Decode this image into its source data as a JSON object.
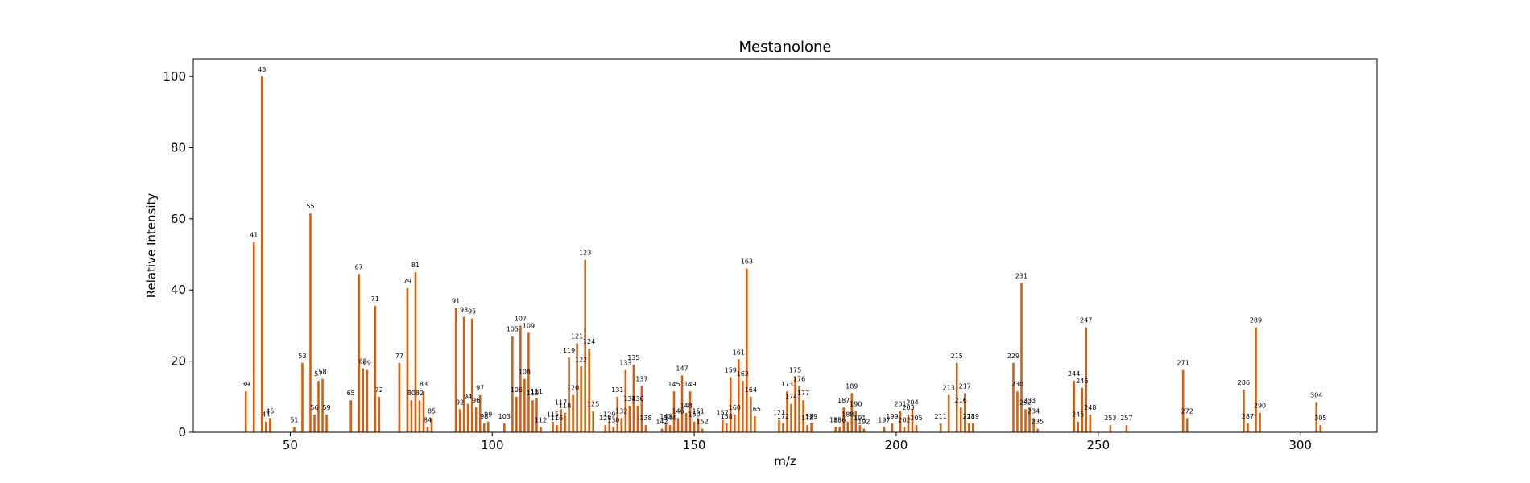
{
  "chart_data": {
    "type": "bar",
    "title": "Mestanolone",
    "xlabel": "m/z",
    "ylabel": "Relative Intensity",
    "xlim": [
      26,
      319
    ],
    "ylim": [
      0,
      105
    ],
    "xticks": [
      50,
      100,
      150,
      200,
      250,
      300
    ],
    "yticks": [
      0,
      20,
      40,
      60,
      80,
      100
    ],
    "bar_color": "#d95f0e",
    "grid": false,
    "peaks": [
      {
        "mz": 39,
        "intensity": 11.5
      },
      {
        "mz": 41,
        "intensity": 53.5
      },
      {
        "mz": 43,
        "intensity": 100
      },
      {
        "mz": 44,
        "intensity": 3
      },
      {
        "mz": 45,
        "intensity": 4
      },
      {
        "mz": 51,
        "intensity": 1.5
      },
      {
        "mz": 53,
        "intensity": 19.5
      },
      {
        "mz": 55,
        "intensity": 61.5
      },
      {
        "mz": 56,
        "intensity": 5
      },
      {
        "mz": 57,
        "intensity": 14.5
      },
      {
        "mz": 58,
        "intensity": 15
      },
      {
        "mz": 59,
        "intensity": 5
      },
      {
        "mz": 65,
        "intensity": 9
      },
      {
        "mz": 67,
        "intensity": 44.5
      },
      {
        "mz": 68,
        "intensity": 18
      },
      {
        "mz": 69,
        "intensity": 17.5
      },
      {
        "mz": 71,
        "intensity": 35.5
      },
      {
        "mz": 72,
        "intensity": 10
      },
      {
        "mz": 77,
        "intensity": 19.5
      },
      {
        "mz": 79,
        "intensity": 40.5
      },
      {
        "mz": 80,
        "intensity": 9
      },
      {
        "mz": 81,
        "intensity": 45
      },
      {
        "mz": 82,
        "intensity": 9
      },
      {
        "mz": 83,
        "intensity": 11.5
      },
      {
        "mz": 84,
        "intensity": 1.5
      },
      {
        "mz": 85,
        "intensity": 4
      },
      {
        "mz": 91,
        "intensity": 35
      },
      {
        "mz": 92,
        "intensity": 6.5
      },
      {
        "mz": 93,
        "intensity": 32.5
      },
      {
        "mz": 94,
        "intensity": 8
      },
      {
        "mz": 95,
        "intensity": 32
      },
      {
        "mz": 96,
        "intensity": 7
      },
      {
        "mz": 97,
        "intensity": 10.5
      },
      {
        "mz": 98,
        "intensity": 2.5
      },
      {
        "mz": 99,
        "intensity": 3
      },
      {
        "mz": 103,
        "intensity": 2.5
      },
      {
        "mz": 105,
        "intensity": 27
      },
      {
        "mz": 106,
        "intensity": 10
      },
      {
        "mz": 107,
        "intensity": 30
      },
      {
        "mz": 108,
        "intensity": 15
      },
      {
        "mz": 109,
        "intensity": 28
      },
      {
        "mz": 110,
        "intensity": 9
      },
      {
        "mz": 111,
        "intensity": 9.5
      },
      {
        "mz": 112,
        "intensity": 1.5
      },
      {
        "mz": 115,
        "intensity": 3
      },
      {
        "mz": 116,
        "intensity": 2
      },
      {
        "mz": 117,
        "intensity": 6.5
      },
      {
        "mz": 118,
        "intensity": 5.5
      },
      {
        "mz": 119,
        "intensity": 21
      },
      {
        "mz": 120,
        "intensity": 10.5
      },
      {
        "mz": 121,
        "intensity": 25
      },
      {
        "mz": 122,
        "intensity": 18.5
      },
      {
        "mz": 123,
        "intensity": 48.5
      },
      {
        "mz": 124,
        "intensity": 23.5
      },
      {
        "mz": 125,
        "intensity": 6
      },
      {
        "mz": 128,
        "intensity": 2
      },
      {
        "mz": 129,
        "intensity": 3
      },
      {
        "mz": 130,
        "intensity": 1.5
      },
      {
        "mz": 131,
        "intensity": 10
      },
      {
        "mz": 132,
        "intensity": 4
      },
      {
        "mz": 133,
        "intensity": 17.5
      },
      {
        "mz": 134,
        "intensity": 7.5
      },
      {
        "mz": 135,
        "intensity": 19
      },
      {
        "mz": 136,
        "intensity": 7.5
      },
      {
        "mz": 137,
        "intensity": 13
      },
      {
        "mz": 138,
        "intensity": 2
      },
      {
        "mz": 142,
        "intensity": 1
      },
      {
        "mz": 143,
        "intensity": 2.5
      },
      {
        "mz": 144,
        "intensity": 2
      },
      {
        "mz": 145,
        "intensity": 11.5
      },
      {
        "mz": 146,
        "intensity": 4
      },
      {
        "mz": 147,
        "intensity": 16
      },
      {
        "mz": 148,
        "intensity": 5.5
      },
      {
        "mz": 149,
        "intensity": 11.5
      },
      {
        "mz": 150,
        "intensity": 3
      },
      {
        "mz": 151,
        "intensity": 4
      },
      {
        "mz": 152,
        "intensity": 1
      },
      {
        "mz": 157,
        "intensity": 3.5
      },
      {
        "mz": 158,
        "intensity": 2.5
      },
      {
        "mz": 159,
        "intensity": 15.5
      },
      {
        "mz": 160,
        "intensity": 5
      },
      {
        "mz": 161,
        "intensity": 20.5
      },
      {
        "mz": 162,
        "intensity": 14.5
      },
      {
        "mz": 163,
        "intensity": 46
      },
      {
        "mz": 164,
        "intensity": 10
      },
      {
        "mz": 165,
        "intensity": 4.5
      },
      {
        "mz": 171,
        "intensity": 3.5
      },
      {
        "mz": 172,
        "intensity": 2.5
      },
      {
        "mz": 173,
        "intensity": 11.5
      },
      {
        "mz": 174,
        "intensity": 8
      },
      {
        "mz": 175,
        "intensity": 15.5
      },
      {
        "mz": 176,
        "intensity": 13
      },
      {
        "mz": 177,
        "intensity": 9
      },
      {
        "mz": 178,
        "intensity": 2
      },
      {
        "mz": 179,
        "intensity": 2.5
      },
      {
        "mz": 185,
        "intensity": 1.5
      },
      {
        "mz": 186,
        "intensity": 1.5
      },
      {
        "mz": 187,
        "intensity": 7
      },
      {
        "mz": 188,
        "intensity": 3
      },
      {
        "mz": 189,
        "intensity": 11
      },
      {
        "mz": 190,
        "intensity": 6
      },
      {
        "mz": 191,
        "intensity": 2
      },
      {
        "mz": 192,
        "intensity": 1
      },
      {
        "mz": 197,
        "intensity": 1.5
      },
      {
        "mz": 199,
        "intensity": 2.5
      },
      {
        "mz": 201,
        "intensity": 6
      },
      {
        "mz": 202,
        "intensity": 1.5
      },
      {
        "mz": 203,
        "intensity": 5
      },
      {
        "mz": 204,
        "intensity": 6.5
      },
      {
        "mz": 205,
        "intensity": 2
      },
      {
        "mz": 211,
        "intensity": 2.5
      },
      {
        "mz": 213,
        "intensity": 10.5
      },
      {
        "mz": 215,
        "intensity": 19.5
      },
      {
        "mz": 216,
        "intensity": 7
      },
      {
        "mz": 217,
        "intensity": 11
      },
      {
        "mz": 218,
        "intensity": 2.5
      },
      {
        "mz": 219,
        "intensity": 2.5
      },
      {
        "mz": 229,
        "intensity": 19.5
      },
      {
        "mz": 230,
        "intensity": 11.5
      },
      {
        "mz": 231,
        "intensity": 42
      },
      {
        "mz": 232,
        "intensity": 6.5
      },
      {
        "mz": 233,
        "intensity": 7
      },
      {
        "mz": 234,
        "intensity": 4
      },
      {
        "mz": 235,
        "intensity": 1
      },
      {
        "mz": 244,
        "intensity": 14.5
      },
      {
        "mz": 245,
        "intensity": 3
      },
      {
        "mz": 246,
        "intensity": 12.5
      },
      {
        "mz": 247,
        "intensity": 29.5
      },
      {
        "mz": 248,
        "intensity": 5
      },
      {
        "mz": 253,
        "intensity": 2
      },
      {
        "mz": 257,
        "intensity": 2
      },
      {
        "mz": 271,
        "intensity": 17.5
      },
      {
        "mz": 272,
        "intensity": 4
      },
      {
        "mz": 286,
        "intensity": 12
      },
      {
        "mz": 287,
        "intensity": 2.5
      },
      {
        "mz": 289,
        "intensity": 29.5
      },
      {
        "mz": 290,
        "intensity": 5.5
      },
      {
        "mz": 304,
        "intensity": 8.5
      },
      {
        "mz": 305,
        "intensity": 2
      }
    ]
  }
}
